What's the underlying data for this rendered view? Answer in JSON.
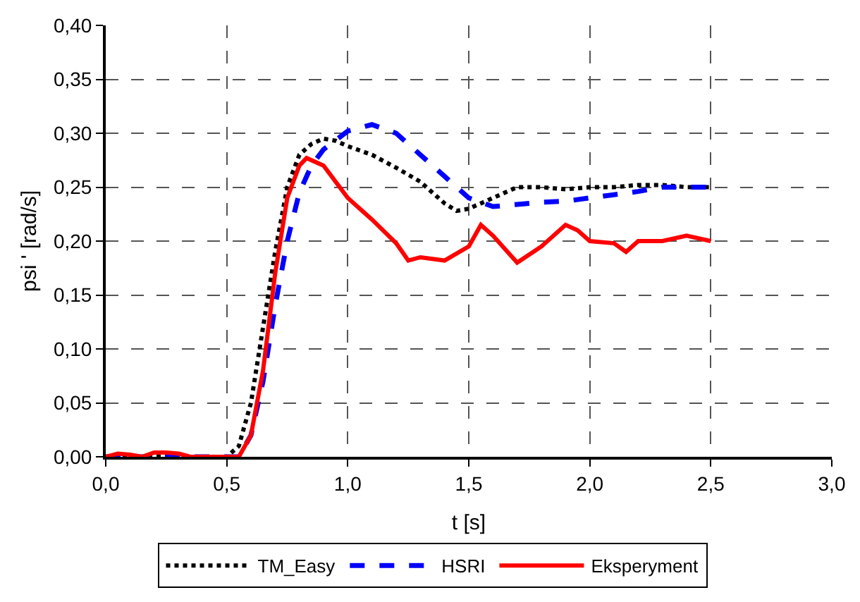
{
  "chart_data": {
    "type": "line",
    "xlabel": "t [s]",
    "ylabel": "psi ' [rad/s]",
    "xlim": [
      0,
      3
    ],
    "ylim": [
      0,
      0.4
    ],
    "xticks": [
      {
        "value": 0,
        "label": "0,0"
      },
      {
        "value": 0.5,
        "label": "0,5"
      },
      {
        "value": 1,
        "label": "1,0"
      },
      {
        "value": 1.5,
        "label": "1,5"
      },
      {
        "value": 2,
        "label": "2,0"
      },
      {
        "value": 2.5,
        "label": "2,5"
      },
      {
        "value": 3,
        "label": "3,0"
      }
    ],
    "yticks": [
      {
        "value": 0,
        "label": "0,00"
      },
      {
        "value": 0.05,
        "label": "0,05"
      },
      {
        "value": 0.1,
        "label": "0,10"
      },
      {
        "value": 0.15,
        "label": "0,15"
      },
      {
        "value": 0.2,
        "label": "0,20"
      },
      {
        "value": 0.25,
        "label": "0,25"
      },
      {
        "value": 0.3,
        "label": "0,30"
      },
      {
        "value": 0.35,
        "label": "0,35"
      },
      {
        "value": 0.4,
        "label": "0,40"
      }
    ],
    "grid": true,
    "legend": "bottom",
    "marker": "none",
    "series": [
      {
        "name": "TM_Easy",
        "color": "#000000",
        "line_style": "dotted",
        "x": [
          0,
          0.5,
          0.55,
          0.6,
          0.65,
          0.7,
          0.75,
          0.8,
          0.85,
          0.9,
          0.95,
          1.0,
          1.1,
          1.2,
          1.3,
          1.4,
          1.45,
          1.5,
          1.6,
          1.7,
          1.8,
          1.9,
          2.0,
          2.1,
          2.2,
          2.3,
          2.4,
          2.5
        ],
        "values": [
          0,
          0,
          0.01,
          0.05,
          0.12,
          0.19,
          0.25,
          0.28,
          0.29,
          0.295,
          0.293,
          0.288,
          0.28,
          0.268,
          0.255,
          0.235,
          0.228,
          0.23,
          0.24,
          0.25,
          0.25,
          0.248,
          0.25,
          0.25,
          0.252,
          0.252,
          0.25,
          0.25
        ]
      },
      {
        "name": "HSRI",
        "color": "#0000ff",
        "line_style": "dashed",
        "x": [
          0,
          0.55,
          0.6,
          0.65,
          0.7,
          0.75,
          0.8,
          0.85,
          0.9,
          1.0,
          1.1,
          1.2,
          1.3,
          1.4,
          1.5,
          1.6,
          1.7,
          1.8,
          1.9,
          2.0,
          2.1,
          2.2,
          2.3,
          2.4,
          2.5
        ],
        "values": [
          0,
          0,
          0.02,
          0.07,
          0.14,
          0.2,
          0.245,
          0.27,
          0.285,
          0.302,
          0.308,
          0.3,
          0.28,
          0.26,
          0.24,
          0.232,
          0.234,
          0.236,
          0.237,
          0.24,
          0.243,
          0.246,
          0.25,
          0.25,
          0.25
        ]
      },
      {
        "name": "Eksperyment",
        "color": "#ff0000",
        "line_style": "solid",
        "x": [
          0,
          0.05,
          0.1,
          0.15,
          0.2,
          0.25,
          0.3,
          0.35,
          0.55,
          0.6,
          0.65,
          0.7,
          0.75,
          0.8,
          0.83,
          0.9,
          0.95,
          1.0,
          1.1,
          1.2,
          1.25,
          1.3,
          1.4,
          1.5,
          1.55,
          1.6,
          1.7,
          1.8,
          1.9,
          1.95,
          2.0,
          2.1,
          2.15,
          2.2,
          2.3,
          2.4,
          2.5
        ],
        "values": [
          0,
          0.003,
          0.002,
          0,
          0.004,
          0.004,
          0.003,
          0,
          0,
          0.02,
          0.08,
          0.17,
          0.24,
          0.27,
          0.277,
          0.27,
          0.255,
          0.24,
          0.22,
          0.198,
          0.182,
          0.185,
          0.182,
          0.195,
          0.215,
          0.205,
          0.18,
          0.195,
          0.215,
          0.21,
          0.2,
          0.198,
          0.19,
          0.2,
          0.2,
          0.205,
          0.2
        ]
      }
    ]
  }
}
